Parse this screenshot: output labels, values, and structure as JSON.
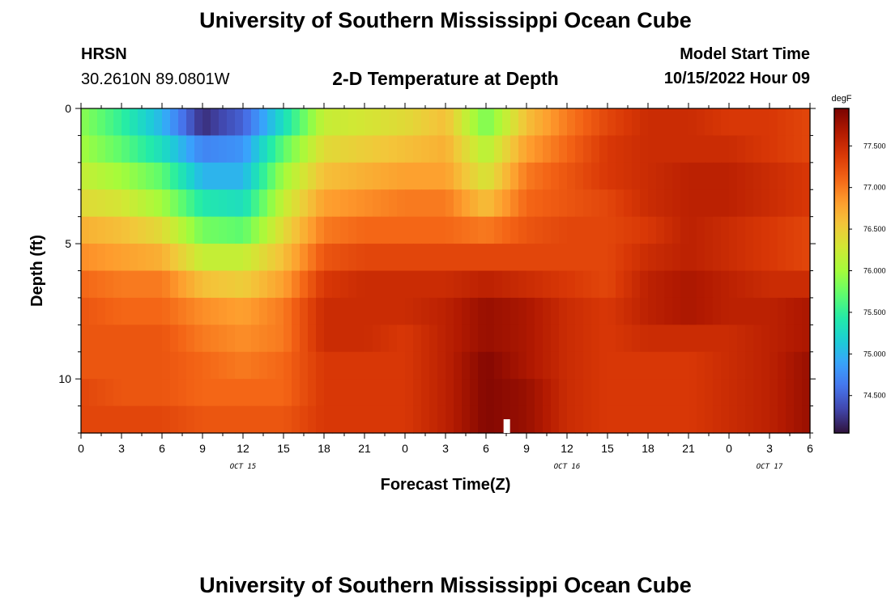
{
  "header": {
    "title": "University of Southern Mississippi Ocean Cube",
    "station": "HRSN",
    "coordinates": "30.2610N  89.0801W",
    "subtitle": "2-D Temperature at Depth",
    "model_start_label": "Model Start Time",
    "model_start_value": "10/15/2022 Hour 09"
  },
  "footer": {
    "title": "University of Southern Mississippi Ocean Cube"
  },
  "chart_data": {
    "type": "heatmap",
    "xlabel": "Forecast Time(Z)",
    "ylabel": "Depth (ft)",
    "x_ticks": [
      "0",
      "3",
      "6",
      "9",
      "12",
      "15",
      "18",
      "21",
      "0",
      "3",
      "6",
      "9",
      "12",
      "15",
      "18",
      "21",
      "0",
      "3",
      "6"
    ],
    "x_range_hours": [
      0,
      54
    ],
    "date_labels": [
      {
        "text": "OCT 15",
        "hour": 12
      },
      {
        "text": "OCT 16",
        "hour": 36
      },
      {
        "text": "OCT 17",
        "hour": 51
      }
    ],
    "y_ticks": [
      "0",
      "5",
      "10"
    ],
    "y_range_ft": [
      0,
      12
    ],
    "y_inverted": true,
    "colorbar": {
      "unit": "degF",
      "min": 74.05,
      "max": 77.95,
      "tick_labels": [
        "77.500",
        "77.000",
        "76.500",
        "76.000",
        "75.500",
        "75.000",
        "74.500"
      ],
      "tick_values": [
        77.5,
        77.0,
        76.5,
        76.0,
        75.5,
        75.0,
        74.5
      ]
    },
    "depth_levels_ft": [
      0.5,
      1.5,
      2.5,
      3.5,
      4.5,
      5.5,
      6.5,
      7.5,
      8.5,
      9.5,
      10.5,
      11.5
    ],
    "time_hours": [
      0,
      3,
      6,
      9,
      12,
      15,
      18,
      21,
      24,
      27,
      30,
      33,
      36,
      39,
      42,
      45,
      48,
      51,
      54
    ],
    "temperature_degF": [
      [
        75.9,
        75.5,
        75.0,
        74.2,
        74.5,
        75.3,
        76.2,
        76.3,
        76.4,
        76.6,
        75.8,
        76.6,
        77.0,
        77.3,
        77.5,
        77.5,
        77.4,
        77.4,
        77.3
      ],
      [
        76.0,
        75.7,
        75.3,
        74.7,
        74.8,
        75.7,
        76.4,
        76.5,
        76.6,
        76.7,
        76.1,
        76.8,
        77.1,
        77.4,
        77.5,
        77.5,
        77.5,
        77.4,
        77.3
      ],
      [
        76.2,
        76.0,
        75.7,
        75.0,
        75.0,
        76.0,
        76.6,
        76.7,
        76.8,
        76.8,
        76.3,
        77.0,
        77.2,
        77.4,
        77.5,
        77.6,
        77.6,
        77.5,
        77.4
      ],
      [
        76.4,
        76.3,
        76.0,
        75.4,
        75.3,
        76.2,
        76.8,
        76.9,
        77.0,
        77.0,
        76.6,
        77.1,
        77.2,
        77.3,
        77.5,
        77.6,
        77.6,
        77.5,
        77.4
      ],
      [
        76.7,
        76.6,
        76.4,
        75.8,
        75.7,
        76.4,
        77.0,
        77.1,
        77.1,
        77.1,
        77.0,
        77.2,
        77.3,
        77.3,
        77.4,
        77.6,
        77.5,
        77.4,
        77.3
      ],
      [
        76.9,
        76.8,
        76.7,
        76.2,
        76.2,
        76.6,
        77.2,
        77.3,
        77.3,
        77.3,
        77.3,
        77.3,
        77.3,
        77.3,
        77.5,
        77.6,
        77.5,
        77.4,
        77.3
      ],
      [
        77.1,
        77.0,
        77.0,
        76.6,
        76.5,
        76.8,
        77.4,
        77.5,
        77.5,
        77.5,
        77.6,
        77.5,
        77.4,
        77.3,
        77.6,
        77.7,
        77.6,
        77.5,
        77.5
      ],
      [
        77.2,
        77.1,
        77.1,
        76.9,
        76.8,
        77.0,
        77.5,
        77.5,
        77.5,
        77.6,
        77.8,
        77.7,
        77.5,
        77.4,
        77.6,
        77.7,
        77.6,
        77.6,
        77.7
      ],
      [
        77.2,
        77.2,
        77.2,
        77.0,
        76.9,
        77.0,
        77.5,
        77.5,
        77.4,
        77.6,
        77.8,
        77.7,
        77.5,
        77.4,
        77.5,
        77.5,
        77.5,
        77.6,
        77.7
      ],
      [
        77.2,
        77.2,
        77.2,
        77.1,
        77.0,
        77.1,
        77.4,
        77.4,
        77.4,
        77.6,
        77.9,
        77.7,
        77.5,
        77.4,
        77.4,
        77.4,
        77.5,
        77.6,
        77.8
      ],
      [
        77.3,
        77.2,
        77.2,
        77.1,
        77.1,
        77.1,
        77.4,
        77.4,
        77.4,
        77.6,
        77.9,
        77.8,
        77.5,
        77.4,
        77.4,
        77.4,
        77.5,
        77.6,
        77.8
      ],
      [
        77.3,
        77.3,
        77.3,
        77.2,
        77.2,
        77.2,
        77.4,
        77.4,
        77.4,
        77.6,
        77.9,
        77.8,
        77.5,
        77.4,
        77.4,
        77.4,
        77.5,
        77.6,
        77.8
      ]
    ]
  }
}
